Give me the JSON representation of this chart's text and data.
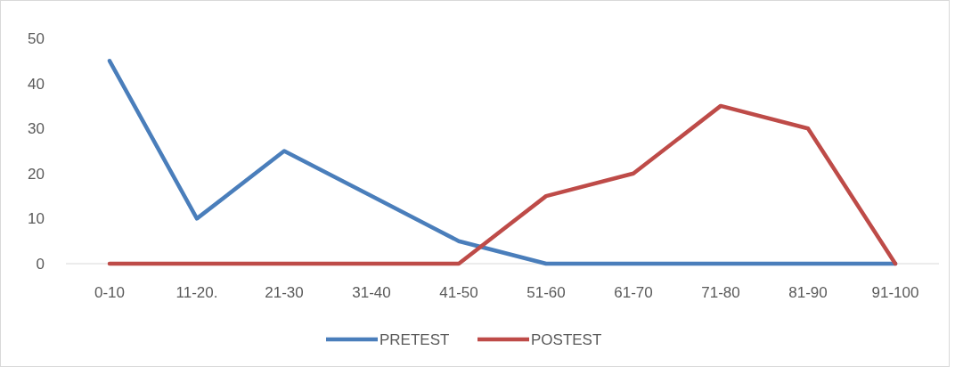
{
  "chart_data": {
    "type": "line",
    "categories": [
      "0-10",
      "11-20.",
      "21-30",
      "31-40",
      "41-50",
      "51-60",
      "61-70",
      "71-80",
      "81-90",
      "91-100"
    ],
    "series": [
      {
        "name": "PRETEST",
        "color": "#4a7ebb",
        "values": [
          45,
          10,
          25,
          15,
          5,
          0,
          0,
          0,
          0,
          0
        ]
      },
      {
        "name": "POSTEST",
        "color": "#be4b48",
        "values": [
          0,
          0,
          0,
          0,
          0,
          15,
          20,
          35,
          30,
          0
        ]
      }
    ],
    "ylim": [
      0,
      50
    ],
    "yticks": [
      0,
      10,
      20,
      30,
      40,
      50
    ],
    "grid": false,
    "legend": "bottom",
    "marker": "none",
    "line_style": "solid"
  }
}
